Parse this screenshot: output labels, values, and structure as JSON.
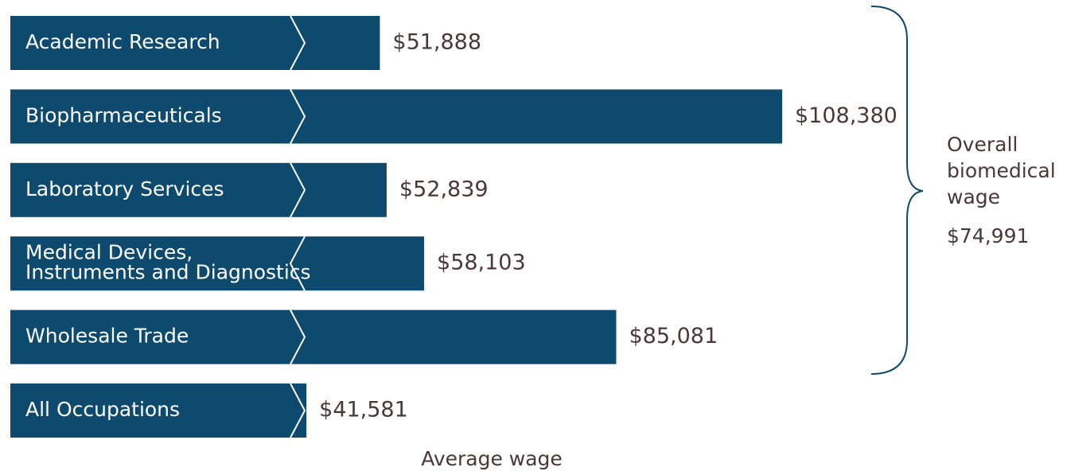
{
  "chart_data": {
    "type": "bar",
    "orientation": "horizontal",
    "categories": [
      "Academic Research",
      "Biopharmaceuticals",
      "Laboratory Services",
      "Medical Devices,\nInstruments and Diagnostics",
      "Wholesale Trade",
      "All Occupations"
    ],
    "values": [
      51888,
      108380,
      52839,
      58103,
      85081,
      41581
    ],
    "value_labels": [
      "$51,888",
      "$108,380",
      "$52,839",
      "$58,103",
      "$85,081",
      "$41,581"
    ],
    "color": "#0d4a6d",
    "xlim": [
      0,
      120000
    ],
    "xlabel": "Average wage",
    "annotation": {
      "text": "Overall\nbiomedical\nwage",
      "value": 74991,
      "value_label": "$74,991"
    }
  }
}
